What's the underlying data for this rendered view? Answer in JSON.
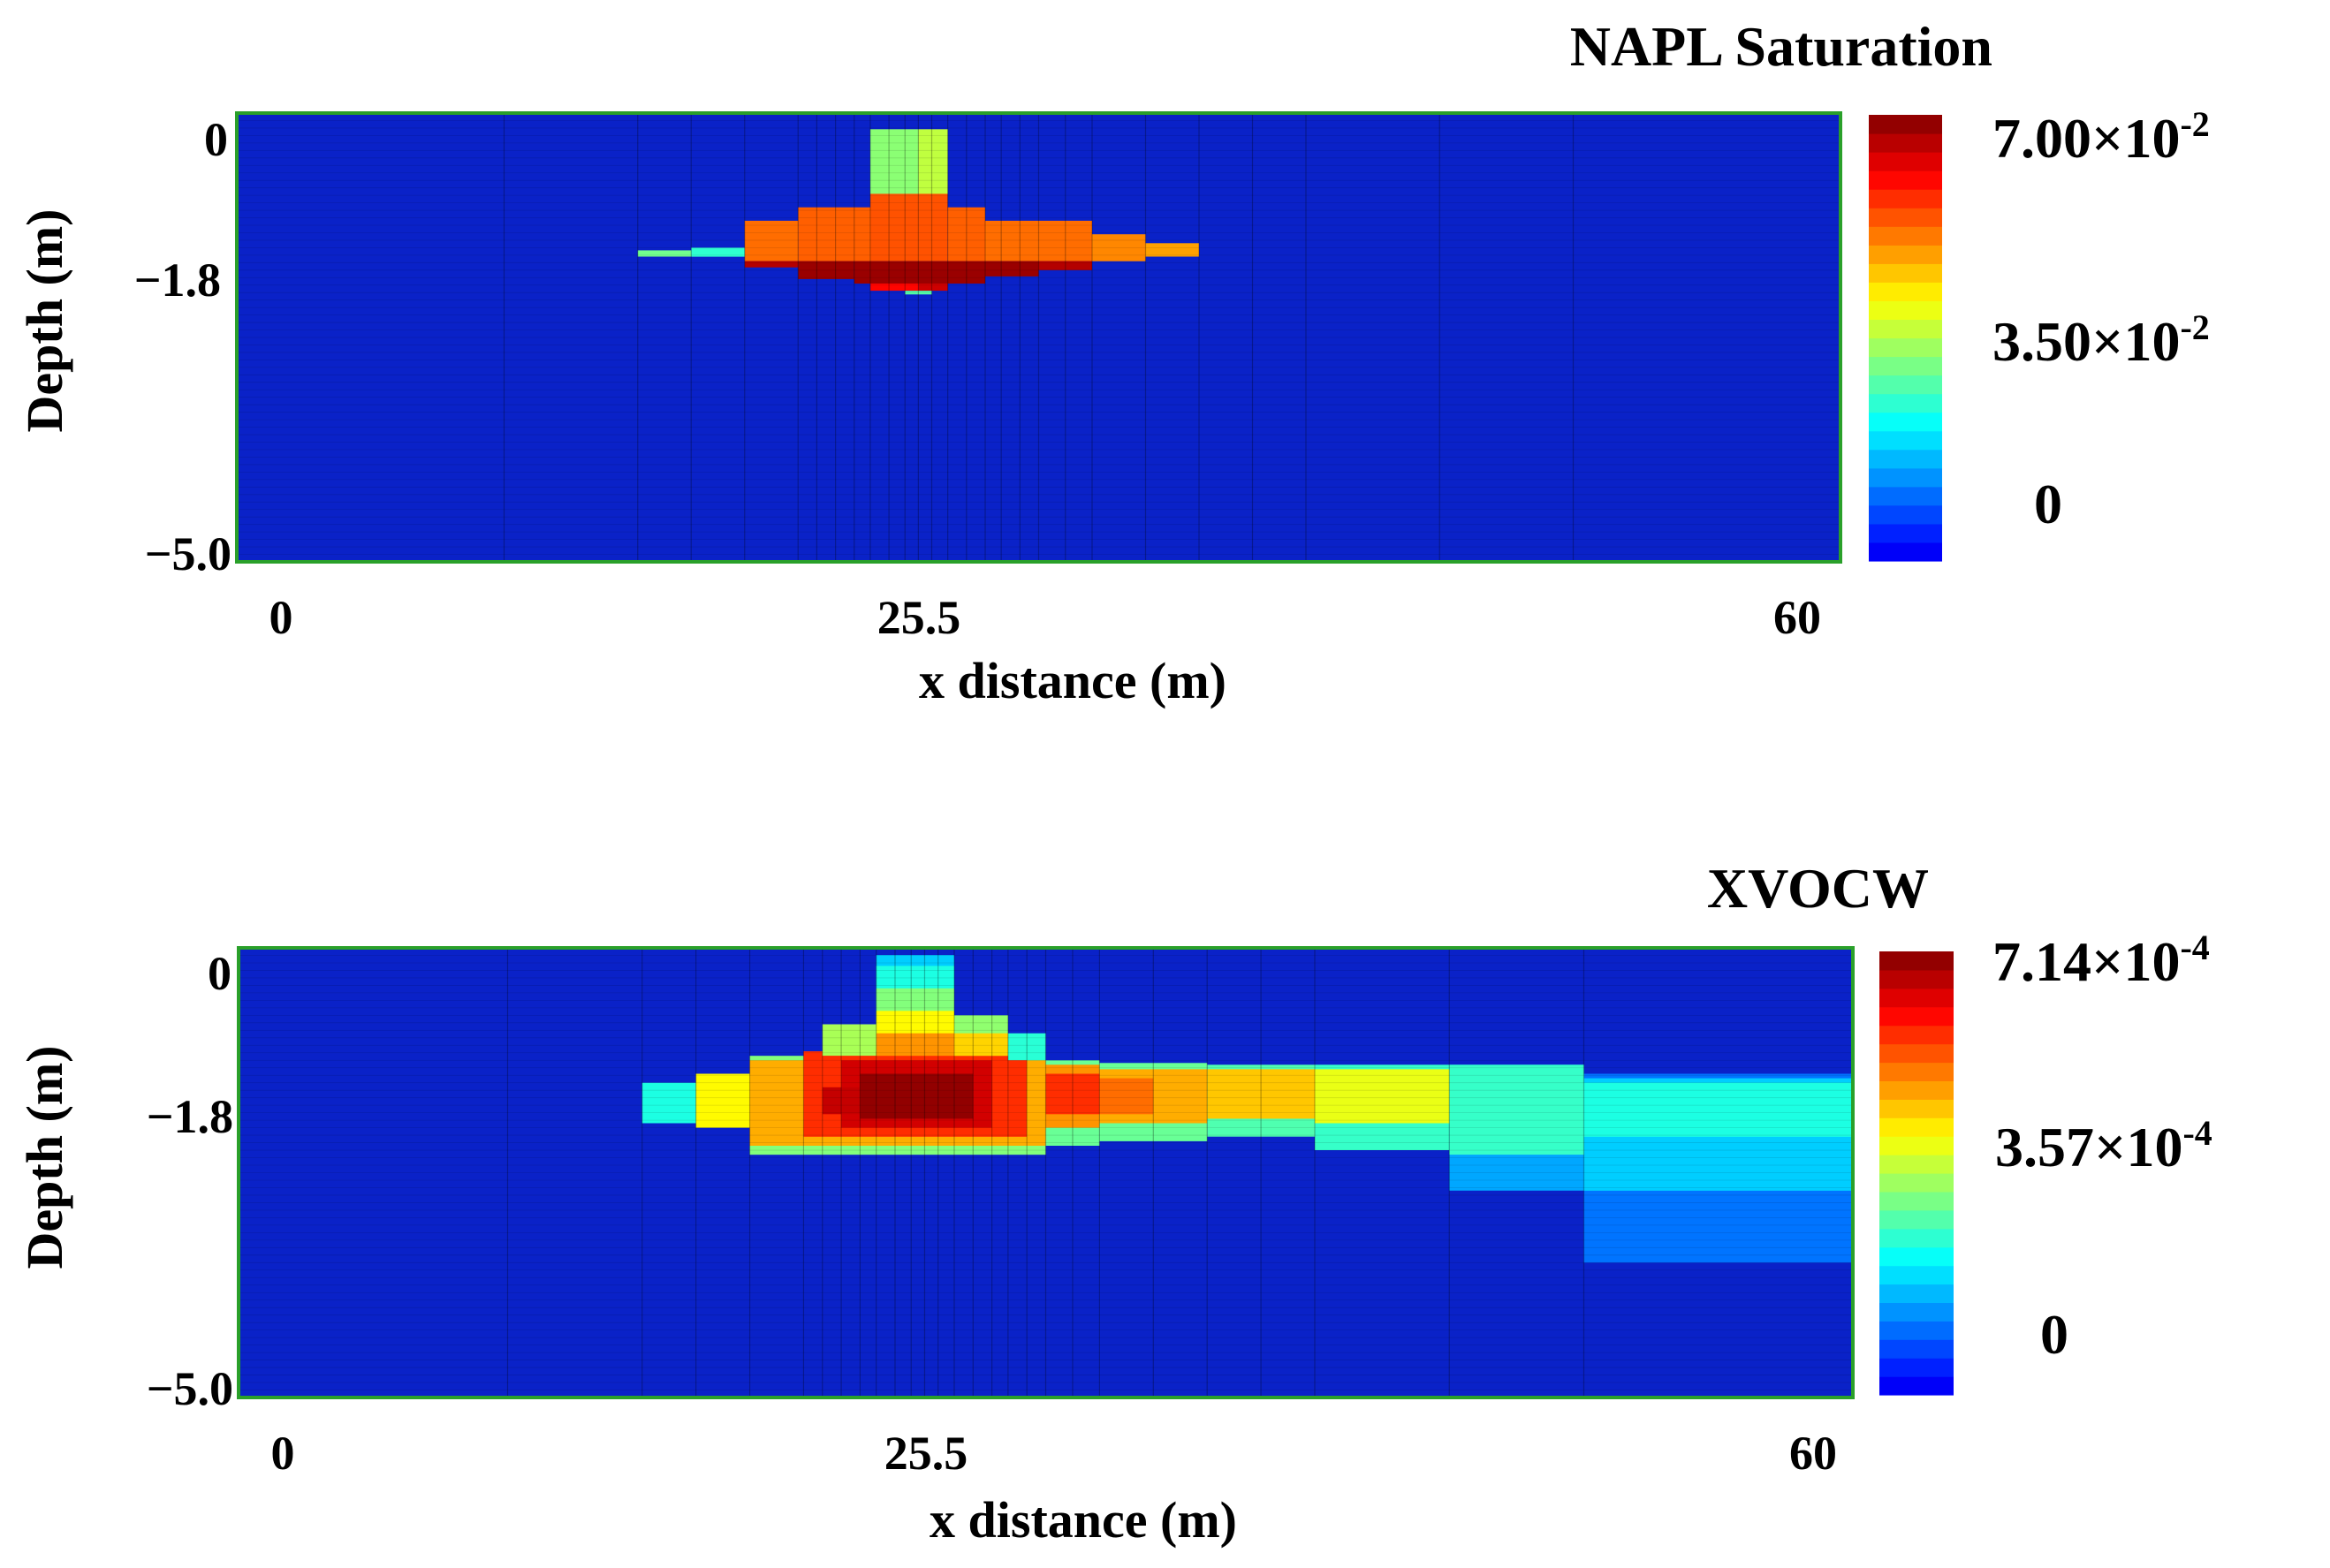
{
  "chart_data": [
    {
      "type": "heatmap",
      "title": "NAPL Saturation",
      "xlabel": "x distance (m)",
      "ylabel": "Depth (m)",
      "xlim": [
        0,
        60
      ],
      "ylim": [
        -5.0,
        0
      ],
      "x_ticks": [
        {
          "value": 0,
          "label": "0"
        },
        {
          "value": 25.5,
          "label": "25.5"
        },
        {
          "value": 60,
          "label": "60"
        }
      ],
      "y_ticks": [
        {
          "value": 0,
          "label": "0"
        },
        {
          "value": -1.8,
          "label": "−1.8"
        },
        {
          "value": -5.0,
          "label": "−5.0"
        }
      ],
      "colorbar": {
        "min": 0,
        "max": 0.07,
        "ticks": [
          {
            "value": 0.07,
            "mantissa": "7.00",
            "exponent": "-2"
          },
          {
            "value": 0.035,
            "mantissa": "3.50",
            "exponent": "-2"
          },
          {
            "value": 0,
            "mantissa": "0",
            "exponent": ""
          }
        ],
        "times_symbol": "×",
        "base": "10"
      },
      "x_edges": [
        0,
        10,
        15,
        17,
        19,
        21,
        21.7,
        22.4,
        23.1,
        23.7,
        24.4,
        25,
        25.5,
        26,
        26.6,
        27.3,
        28,
        28.6,
        29.3,
        30,
        31,
        32,
        34,
        36,
        38,
        40,
        45,
        50,
        60
      ],
      "cells": [
        {
          "x": [
            23.7,
            25.5
          ],
          "y": [
            -0.9,
            -0.18
          ],
          "v": 0.032
        },
        {
          "x": [
            25.5,
            26.6
          ],
          "y": [
            -0.9,
            -0.18
          ],
          "v": 0.036
        },
        {
          "x": [
            19,
            21
          ],
          "y": [
            -1.65,
            -1.2
          ],
          "v": 0.052
        },
        {
          "x": [
            21,
            23.7
          ],
          "y": [
            -1.65,
            -1.05
          ],
          "v": 0.053
        },
        {
          "x": [
            23.7,
            26.6
          ],
          "y": [
            -1.65,
            -0.9
          ],
          "v": 0.054
        },
        {
          "x": [
            26.6,
            28
          ],
          "y": [
            -1.65,
            -1.05
          ],
          "v": 0.053
        },
        {
          "x": [
            28,
            32
          ],
          "y": [
            -1.65,
            -1.2
          ],
          "v": 0.052
        },
        {
          "x": [
            32,
            34
          ],
          "y": [
            -1.65,
            -1.35
          ],
          "v": 0.05
        },
        {
          "x": [
            17,
            19
          ],
          "y": [
            -1.6,
            -1.5
          ],
          "v": 0.025
        },
        {
          "x": [
            15,
            17
          ],
          "y": [
            -1.6,
            -1.53
          ],
          "v": 0.03
        },
        {
          "x": [
            34,
            36
          ],
          "y": [
            -1.6,
            -1.45
          ],
          "v": 0.048
        },
        {
          "x": [
            19,
            21
          ],
          "y": [
            -1.72,
            -1.65
          ],
          "v": 0.066
        },
        {
          "x": [
            21,
            23.1
          ],
          "y": [
            -1.85,
            -1.65
          ],
          "v": 0.068
        },
        {
          "x": [
            23.1,
            28
          ],
          "y": [
            -1.9,
            -1.65
          ],
          "v": 0.068
        },
        {
          "x": [
            28,
            30
          ],
          "y": [
            -1.82,
            -1.65
          ],
          "v": 0.068
        },
        {
          "x": [
            30,
            32
          ],
          "y": [
            -1.75,
            -1.65
          ],
          "v": 0.066
        },
        {
          "x": [
            23.7,
            25.5
          ],
          "y": [
            -1.98,
            -1.9
          ],
          "v": 0.06
        },
        {
          "x": [
            25.5,
            26.6
          ],
          "y": [
            -1.98,
            -1.9
          ],
          "v": 0.064
        },
        {
          "x": [
            25,
            26
          ],
          "y": [
            -2.02,
            -1.98
          ],
          "v": 0.028
        }
      ]
    },
    {
      "type": "heatmap",
      "title": "XVOCW",
      "xlabel": "x distance (m)",
      "ylabel": "Depth (m)",
      "xlim": [
        0,
        60
      ],
      "ylim": [
        -5.0,
        0
      ],
      "x_ticks": [
        {
          "value": 0,
          "label": "0"
        },
        {
          "value": 25.5,
          "label": "25.5"
        },
        {
          "value": 60,
          "label": "60"
        }
      ],
      "y_ticks": [
        {
          "value": 0,
          "label": "0"
        },
        {
          "value": -1.8,
          "label": "−1.8"
        },
        {
          "value": -5.0,
          "label": "−5.0"
        }
      ],
      "colorbar": {
        "min": 0,
        "max": 0.000714,
        "ticks": [
          {
            "value": 0.000714,
            "mantissa": "7.14",
            "exponent": "-4"
          },
          {
            "value": 0.000357,
            "mantissa": "3.57",
            "exponent": "-4"
          },
          {
            "value": 0,
            "mantissa": "0",
            "exponent": ""
          }
        ],
        "times_symbol": "×",
        "base": "10"
      },
      "x_edges": [
        0,
        10,
        15,
        17,
        19,
        21,
        21.7,
        22.4,
        23.1,
        23.7,
        24.4,
        25,
        25.5,
        26,
        26.6,
        27.3,
        28,
        28.6,
        29.3,
        30,
        31,
        32,
        34,
        36,
        38,
        40,
        45,
        50,
        60
      ],
      "cells": [
        {
          "x": [
            50,
            60
          ],
          "y": [
            -3.5,
            -1.4
          ],
          "v": 0.00011
        },
        {
          "x": [
            50,
            60
          ],
          "y": [
            -2.7,
            -1.45
          ],
          "v": 0.00018
        },
        {
          "x": [
            50,
            60
          ],
          "y": [
            -2.1,
            -1.5
          ],
          "v": 0.00024
        },
        {
          "x": [
            45,
            50
          ],
          "y": [
            -2.7,
            -1.3
          ],
          "v": 0.00015
        },
        {
          "x": [
            45,
            50
          ],
          "y": [
            -2.3,
            -1.3
          ],
          "v": 0.00026
        },
        {
          "x": [
            40,
            45
          ],
          "y": [
            -2.25,
            -1.3
          ],
          "v": 0.00026
        },
        {
          "x": [
            40,
            45
          ],
          "y": [
            -1.95,
            -1.35
          ],
          "v": 0.0004
        },
        {
          "x": [
            36,
            40
          ],
          "y": [
            -2.1,
            -1.3
          ],
          "v": 0.00028
        },
        {
          "x": [
            36,
            40
          ],
          "y": [
            -1.9,
            -1.35
          ],
          "v": 0.00046
        },
        {
          "x": [
            32,
            36
          ],
          "y": [
            -2.15,
            -1.28
          ],
          "v": 0.0003
        },
        {
          "x": [
            32,
            36
          ],
          "y": [
            -1.95,
            -1.35
          ],
          "v": 0.00048
        },
        {
          "x": [
            32,
            34
          ],
          "y": [
            -1.85,
            -1.45
          ],
          "v": 0.00053
        },
        {
          "x": [
            30,
            32
          ],
          "y": [
            -2.2,
            -1.25
          ],
          "v": 0.0003
        },
        {
          "x": [
            30,
            32
          ],
          "y": [
            -2.0,
            -1.3
          ],
          "v": 0.0005
        },
        {
          "x": [
            30,
            32
          ],
          "y": [
            -1.85,
            -1.4
          ],
          "v": 0.00058
        },
        {
          "x": [
            15,
            17
          ],
          "y": [
            -1.95,
            -1.5
          ],
          "v": 0.00024
        },
        {
          "x": [
            17,
            19
          ],
          "y": [
            -2.0,
            -1.4
          ],
          "v": 0.00042
        },
        {
          "x": [
            19,
            30
          ],
          "y": [
            -2.3,
            -1.2
          ],
          "v": 0.00032
        },
        {
          "x": [
            19,
            30
          ],
          "y": [
            -2.2,
            -1.25
          ],
          "v": 0.00048
        },
        {
          "x": [
            21,
            29.3
          ],
          "y": [
            -2.1,
            -1.15
          ],
          "v": 0.00058
        },
        {
          "x": [
            22.4,
            28
          ],
          "y": [
            -2.0,
            -1.25
          ],
          "v": 0.00065
        },
        {
          "x": [
            23.1,
            27.3
          ],
          "y": [
            -1.9,
            -1.4
          ],
          "v": 0.0007
        },
        {
          "x": [
            21.7,
            23.1
          ],
          "y": [
            -1.85,
            -1.55
          ],
          "v": 0.00066
        },
        {
          "x": [
            23.7,
            26.6
          ],
          "y": [
            -1.15,
            -0.08
          ],
          "v": 0.00018
        },
        {
          "x": [
            23.7,
            26.6
          ],
          "y": [
            -1.15,
            -0.2
          ],
          "v": 0.00024
        },
        {
          "x": [
            23.7,
            26.6
          ],
          "y": [
            -1.15,
            -0.45
          ],
          "v": 0.00032
        },
        {
          "x": [
            23.7,
            26.6
          ],
          "y": [
            -1.15,
            -0.7
          ],
          "v": 0.00042
        },
        {
          "x": [
            23.7,
            26.6
          ],
          "y": [
            -1.2,
            -0.95
          ],
          "v": 0.0005
        },
        {
          "x": [
            21.7,
            23.7
          ],
          "y": [
            -1.2,
            -0.85
          ],
          "v": 0.00035
        },
        {
          "x": [
            26.6,
            28.6
          ],
          "y": [
            -1.2,
            -0.75
          ],
          "v": 0.00033
        },
        {
          "x": [
            26.6,
            28.6
          ],
          "y": [
            -1.2,
            -0.95
          ],
          "v": 0.00045
        },
        {
          "x": [
            28.6,
            30
          ],
          "y": [
            -1.25,
            -0.95
          ],
          "v": 0.00025
        }
      ]
    }
  ]
}
